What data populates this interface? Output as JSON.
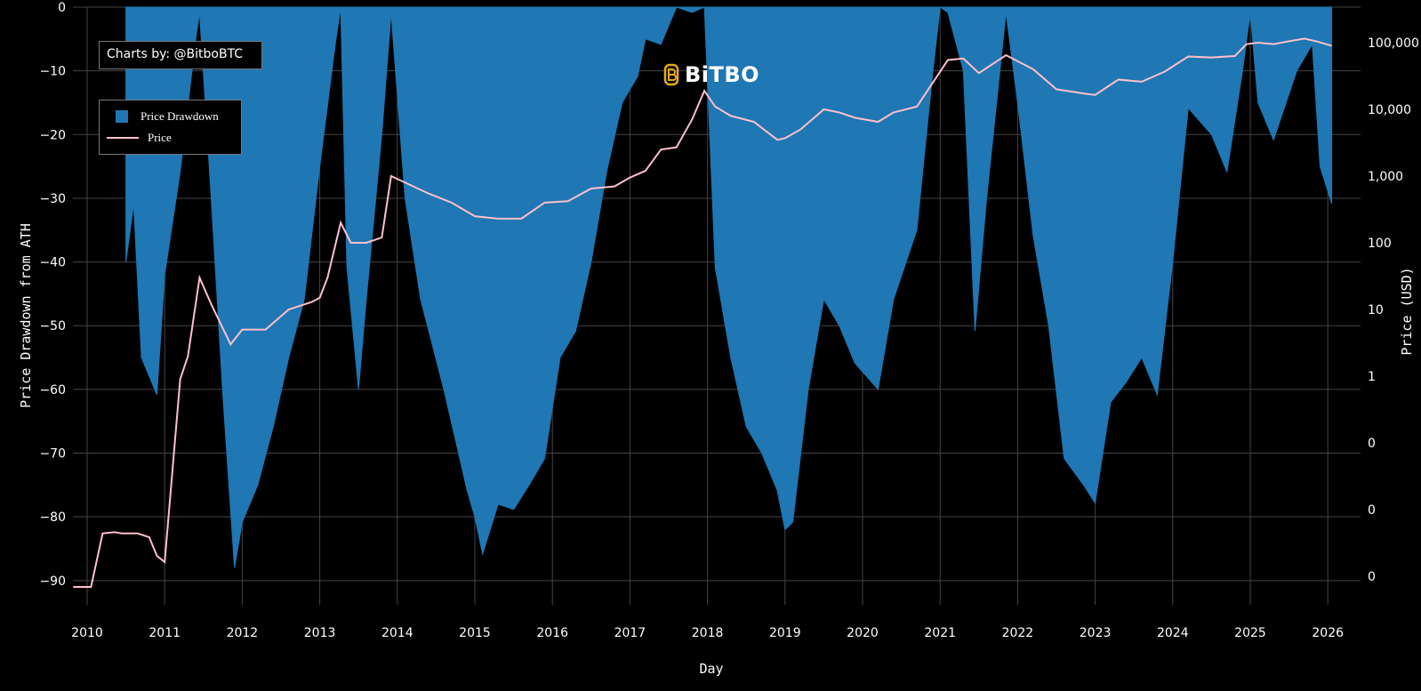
{
  "watermark": {
    "brand": "BiTBO",
    "icon": "bitbo-logo-icon"
  },
  "credit": {
    "text": "Charts by: @BitboBTC"
  },
  "legend": {
    "items": [
      {
        "label": "Price Drawdown",
        "color": "#1f77b4",
        "shape": "square"
      },
      {
        "label": "Price",
        "color": "#ffc0cb",
        "shape": "line"
      }
    ]
  },
  "chart_data": {
    "type": "area",
    "xlabel": "Day",
    "ylabel": "Price Drawdown from ATH",
    "y2label": "Price (USD)",
    "x_ticks": [
      "2010",
      "2011",
      "2012",
      "2013",
      "2014",
      "2015",
      "2016",
      "2017",
      "2018",
      "2019",
      "2020",
      "2021",
      "2022",
      "2023",
      "2024",
      "2025",
      "2026"
    ],
    "xlim": [
      2009.82,
      2026.1
    ],
    "y_ticks": [
      0,
      -10,
      -20,
      -30,
      -40,
      -50,
      -60,
      -70,
      -80,
      -90
    ],
    "y_tick_labels": [
      "0",
      "−10",
      "−20",
      "−30",
      "−40",
      "−50",
      "−60",
      "−70",
      "−80",
      "−90"
    ],
    "ylim": [
      -91,
      0
    ],
    "y2_ticks": [
      "100,000",
      "10,000",
      "1,000",
      "100",
      "10",
      "1",
      "0",
      "0",
      "0"
    ],
    "y2_scale": "log",
    "grid": true,
    "colors": {
      "drawdown": "#1f77b4",
      "price": "#ffc0cb",
      "grid": "#444444",
      "background": "#000000"
    },
    "series": [
      {
        "name": "Price Drawdown",
        "x": [
          2010.5,
          2010.6,
          2010.7,
          2010.9,
          2011.0,
          2011.2,
          2011.4,
          2011.45,
          2011.6,
          2011.75,
          2011.9,
          2012.0,
          2012.2,
          2012.4,
          2012.6,
          2012.8,
          2013.0,
          2013.2,
          2013.27,
          2013.35,
          2013.5,
          2013.6,
          2013.8,
          2013.92,
          2014.1,
          2014.3,
          2014.6,
          2014.9,
          2015.0,
          2015.1,
          2015.3,
          2015.5,
          2015.7,
          2015.9,
          2016.1,
          2016.3,
          2016.5,
          2016.7,
          2016.9,
          2017.1,
          2017.2,
          2017.4,
          2017.6,
          2017.8,
          2017.96,
          2018.1,
          2018.3,
          2018.5,
          2018.7,
          2018.9,
          2019.0,
          2019.1,
          2019.3,
          2019.5,
          2019.7,
          2019.9,
          2020.2,
          2020.4,
          2020.7,
          2020.9,
          2021.0,
          2021.1,
          2021.3,
          2021.45,
          2021.6,
          2021.85,
          2022.0,
          2022.2,
          2022.4,
          2022.6,
          2022.85,
          2023.0,
          2023.2,
          2023.4,
          2023.6,
          2023.8,
          2024.0,
          2024.2,
          2024.5,
          2024.7,
          2024.9,
          2025.0,
          2025.1,
          2025.3,
          2025.6,
          2025.8,
          2025.9,
          2026.05
        ],
        "values": [
          -40,
          -30,
          -55,
          -60,
          -42,
          -25,
          -5,
          0,
          -30,
          -60,
          -88,
          -80,
          -75,
          -65,
          -55,
          -45,
          -25,
          -5,
          0,
          -40,
          -60,
          -45,
          -20,
          0,
          -30,
          -45,
          -60,
          -75,
          -80,
          -85,
          -78,
          -78,
          -75,
          -70,
          -55,
          -50,
          -40,
          -25,
          -15,
          -10,
          -5,
          -5,
          0,
          0,
          0,
          -40,
          -55,
          -65,
          -70,
          -75,
          -82,
          -80,
          -60,
          -45,
          -50,
          -55,
          -60,
          -45,
          -35,
          -10,
          0,
          0,
          -10,
          -50,
          -30,
          0,
          -15,
          -35,
          -50,
          -70,
          -75,
          -77,
          -62,
          -58,
          -55,
          -60,
          -40,
          -15,
          -20,
          -25,
          -10,
          0,
          -15,
          -20,
          -10,
          -5,
          -25,
          -30
        ]
      },
      {
        "name": "Price",
        "x": [
          2009.82,
          2010.05,
          2010.2,
          2010.35,
          2010.45,
          2010.55,
          2010.65,
          2010.8,
          2010.9,
          2011.0,
          2011.2,
          2011.3,
          2011.45,
          2011.6,
          2011.85,
          2012.0,
          2012.3,
          2012.6,
          2012.9,
          2013.0,
          2013.1,
          2013.27,
          2013.4,
          2013.6,
          2013.8,
          2013.92,
          2014.1,
          2014.4,
          2014.7,
          2015.0,
          2015.3,
          2015.6,
          2015.9,
          2016.2,
          2016.5,
          2016.8,
          2017.0,
          2017.2,
          2017.4,
          2017.6,
          2017.8,
          2017.96,
          2018.1,
          2018.3,
          2018.6,
          2018.9,
          2019.0,
          2019.2,
          2019.5,
          2019.7,
          2019.9,
          2020.2,
          2020.4,
          2020.7,
          2020.95,
          2021.1,
          2021.3,
          2021.5,
          2021.85,
          2022.2,
          2022.5,
          2022.9,
          2023.0,
          2023.3,
          2023.6,
          2023.9,
          2024.2,
          2024.5,
          2024.8,
          2024.95,
          2025.1,
          2025.3,
          2025.5,
          2025.7,
          2025.85,
          2026.05
        ],
        "values": [
          0.05,
          0.05,
          0.07,
          0.06,
          0.07,
          0.07,
          0.07,
          0.1,
          0.25,
          0.3,
          0.9,
          2,
          30,
          12,
          3,
          5,
          5,
          10,
          13,
          15,
          30,
          200,
          100,
          100,
          120,
          1000,
          800,
          550,
          400,
          250,
          230,
          230,
          400,
          420,
          650,
          700,
          950,
          1200,
          2500,
          2700,
          7000,
          19000,
          11000,
          8000,
          6500,
          3500,
          3700,
          5000,
          10000,
          9000,
          7500,
          6500,
          9000,
          11000,
          30000,
          55000,
          58000,
          35000,
          65000,
          40000,
          20000,
          17000,
          16500,
          28000,
          26000,
          37000,
          62000,
          60000,
          63000,
          95000,
          100000,
          95000,
          105000,
          115000,
          105000,
          90000
        ]
      }
    ]
  }
}
